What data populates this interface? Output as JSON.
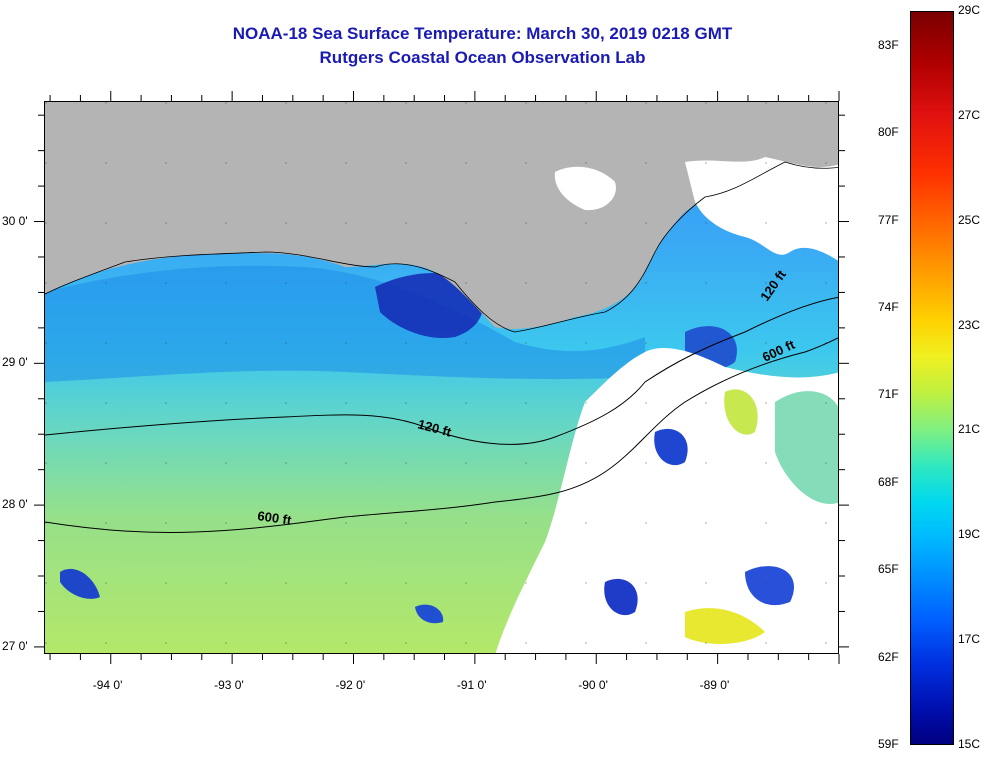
{
  "title": {
    "line1": "NOAA-18 Sea Surface Temperature:  March 30, 2019 0218 GMT",
    "line2": "Rutgers Coastal Ocean Observation Lab"
  },
  "map": {
    "lat_ticks": [
      {
        "label": "30 0'",
        "lat": 30.0
      },
      {
        "label": "29 0'",
        "lat": 29.0
      },
      {
        "label": "28 0'",
        "lat": 28.0
      },
      {
        "label": "27 0'",
        "lat": 27.0
      }
    ],
    "lon_ticks": [
      {
        "label": "-94 0'",
        "lon": -94.0
      },
      {
        "label": "-93 0'",
        "lon": -93.0
      },
      {
        "label": "-92 0'",
        "lon": -92.0
      },
      {
        "label": "-91 0'",
        "lon": -91.0
      },
      {
        "label": "-90 0'",
        "lon": -90.0
      },
      {
        "label": "-89 0'",
        "lon": -89.0
      }
    ],
    "lon_range": [
      -94.55,
      -88.0
    ],
    "lat_range": [
      26.95,
      30.85
    ],
    "contour_labels": {
      "c120_west": "120 ft",
      "c600_west": "600 ft",
      "c120_east": "120 ft",
      "c600_east": "600 ft"
    },
    "colors": {
      "land": "#b4b4b4",
      "cloud": "#ffffff",
      "cool_water": "#1e8cf0",
      "mid_water": "#28c8f0",
      "warm_water": "#a8e868",
      "cold_patch": "#1428b4",
      "contour": "#000000"
    }
  },
  "colorbar": {
    "celsius_labels": [
      "29C",
      "27C",
      "25C",
      "23C",
      "21C",
      "19C",
      "17C",
      "15C"
    ],
    "fahrenheit_labels": [
      "83F",
      "80F",
      "77F",
      "74F",
      "71F",
      "68F",
      "65F",
      "62F",
      "59F"
    ],
    "range_c": [
      15,
      29
    ],
    "range_f": [
      59,
      84.2
    ]
  }
}
